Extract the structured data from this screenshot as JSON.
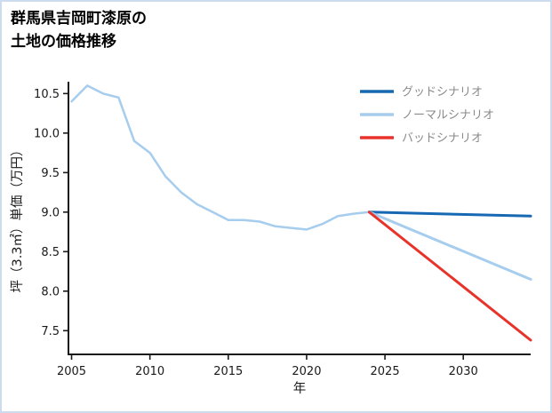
{
  "header": {
    "title_line1": "群馬県吉岡町漆原の",
    "title_line2": "土地の価格推移"
  },
  "chart_data": {
    "type": "line",
    "title": "群馬県吉岡町漆原の土地の価格推移",
    "xlabel": "年",
    "ylabel": "坪（3.3㎡）単価（万円）",
    "xlim": [
      2004.8,
      2034.3
    ],
    "ylim": [
      7.2,
      10.65
    ],
    "xticks": [
      2005,
      2010,
      2015,
      2020,
      2025,
      2030
    ],
    "yticks": [
      7.5,
      8.0,
      8.5,
      9.0,
      9.5,
      10.0,
      10.5
    ],
    "grid": false,
    "legend_position": "top-right",
    "colors": {
      "axis": "#1a1a1a",
      "tick_label": "#1a1a1a",
      "legend_text": "#8a8a8a",
      "frame_border": "#ccdcee",
      "background": "#ffffff"
    },
    "series": [
      {
        "key": "historical-line",
        "in_legend": false,
        "color": "#a6cdee",
        "width": 2.5,
        "x": [
          2005,
          2006,
          2007,
          2008,
          2009,
          2010,
          2011,
          2012,
          2013,
          2014,
          2015,
          2016,
          2017,
          2018,
          2019,
          2020,
          2021,
          2022,
          2023,
          2024
        ],
        "y": [
          10.4,
          10.6,
          10.5,
          10.45,
          9.9,
          9.75,
          9.45,
          9.25,
          9.1,
          9.0,
          8.9,
          8.9,
          8.88,
          8.82,
          8.8,
          8.78,
          8.85,
          8.95,
          8.98,
          9.0
        ]
      },
      {
        "key": "good-scenario-line",
        "name": "グッドシナリオ",
        "in_legend": true,
        "color": "#1668b3",
        "width": 3,
        "x": [
          2024,
          2034.3
        ],
        "y": [
          9.0,
          8.95
        ]
      },
      {
        "key": "normal-scenario-line",
        "name": "ノーマルシナリオ",
        "in_legend": true,
        "color": "#a6cdee",
        "width": 3,
        "x": [
          2024,
          2034.3
        ],
        "y": [
          9.0,
          8.15
        ]
      },
      {
        "key": "bad-scenario-line",
        "name": "バッドシナリオ",
        "in_legend": true,
        "color": "#e8332a",
        "width": 3,
        "x": [
          2024,
          2034.3
        ],
        "y": [
          9.0,
          7.38
        ]
      }
    ]
  }
}
